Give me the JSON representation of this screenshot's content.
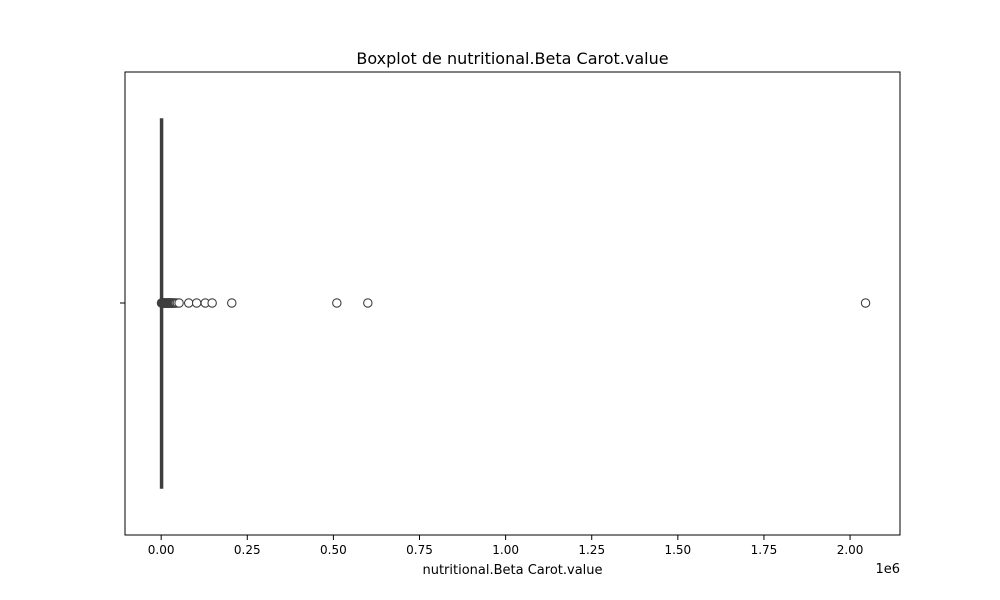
{
  "chart_data": {
    "type": "boxplot",
    "orientation": "horizontal",
    "title": "Boxplot de nutritional.Beta Carot.value",
    "xlabel": "nutritional.Beta Carot.value",
    "ylabel": "",
    "x_offset_label": "1e6",
    "x_scale_factor": 1000000,
    "xlim": [
      -0.105,
      2.145
    ],
    "x_ticks": [
      0.0,
      0.25,
      0.5,
      0.75,
      1.0,
      1.25,
      1.5,
      1.75,
      2.0
    ],
    "x_tick_labels": [
      "0.00",
      "0.25",
      "0.50",
      "0.75",
      "1.00",
      "1.25",
      "1.50",
      "1.75",
      "2.00"
    ],
    "grid": false,
    "legend": false,
    "box": {
      "whisker_low": 0,
      "q1": 0,
      "median": 0,
      "q3": 0,
      "whisker_high": 0
    },
    "outliers": [
      0.001,
      0.002,
      0.003,
      0.004,
      0.005,
      0.006,
      0.007,
      0.008,
      0.009,
      0.01,
      0.011,
      0.012,
      0.013,
      0.014,
      0.015,
      0.016,
      0.017,
      0.018,
      0.019,
      0.02,
      0.021,
      0.022,
      0.023,
      0.024,
      0.025,
      0.026,
      0.027,
      0.028,
      0.029,
      0.03,
      0.031,
      0.032,
      0.034,
      0.036,
      0.038,
      0.04,
      0.043,
      0.047,
      0.052,
      0.08,
      0.103,
      0.128,
      0.148,
      0.205,
      0.51,
      0.6,
      2.045
    ],
    "colors": {
      "line": "#3f3f3f",
      "marker_edge": "#3f3f3f",
      "marker_fill": "#ffffff",
      "axes": "#000000"
    }
  }
}
